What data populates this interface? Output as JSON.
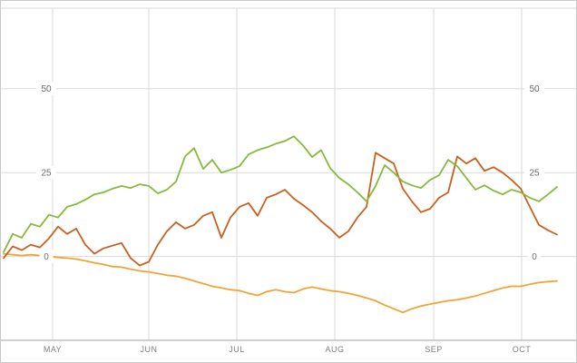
{
  "chart_data": {
    "type": "line",
    "title": "",
    "xlabel": "",
    "ylabel": "",
    "grid": true,
    "legend_position": "none",
    "x_tick_labels": [
      "MAY",
      "JUN",
      "JUL",
      "AUG",
      "SEP",
      "OCT"
    ],
    "y_ticks": [
      0,
      25,
      50
    ],
    "y_tick_labels": [
      "0",
      "25",
      "50"
    ],
    "ylim": [
      -25,
      74
    ],
    "colors": {
      "green_series": "#86b93e",
      "dark_orange_series": "#c8611f",
      "amber_series": "#f1a436",
      "gridline": "#d9d9d9",
      "axis": "#a0a0a0",
      "tick_text": "#6b6b6b"
    },
    "series": [
      {
        "name": "amber",
        "color": "#f1a436",
        "values": [
          0.8,
          0.5,
          0.3,
          0.5,
          0.3,
          0.0,
          -0.3,
          -0.5,
          -0.8,
          -1.3,
          -1.9,
          -2.4,
          -3.0,
          -3.2,
          -3.8,
          -4.3,
          -4.6,
          -5.1,
          -5.6,
          -5.9,
          -6.5,
          -7.3,
          -8.1,
          -8.9,
          -9.4,
          -9.9,
          -10.2,
          -11.0,
          -11.6,
          -10.5,
          -9.9,
          -10.5,
          -10.8,
          -9.7,
          -9.1,
          -9.7,
          -10.2,
          -10.5,
          -11.0,
          -11.6,
          -12.4,
          -13.2,
          -14.5,
          -15.6,
          -16.7,
          -15.6,
          -14.8,
          -14.2,
          -13.7,
          -13.2,
          -12.9,
          -12.4,
          -11.8,
          -11.0,
          -10.2,
          -9.4,
          -8.9,
          -8.9,
          -8.3,
          -7.8,
          -7.5,
          -7.3
        ]
      },
      {
        "name": "dark-orange",
        "color": "#c8611f",
        "values": [
          -0.5,
          3.0,
          1.9,
          3.5,
          2.7,
          5.4,
          8.9,
          6.7,
          8.3,
          3.5,
          0.8,
          2.4,
          3.2,
          4.0,
          -0.5,
          -2.7,
          -1.6,
          3.5,
          7.5,
          10.2,
          8.3,
          9.4,
          12.1,
          13.2,
          5.6,
          11.6,
          14.8,
          15.9,
          12.1,
          17.5,
          18.5,
          19.9,
          17.2,
          15.3,
          13.2,
          10.5,
          8.3,
          5.6,
          7.5,
          11.6,
          14.8,
          30.9,
          29.3,
          27.7,
          20.2,
          16.4,
          13.2,
          14.2,
          17.5,
          19.1,
          29.8,
          27.7,
          29.3,
          25.5,
          26.6,
          25.0,
          22.8,
          20.2,
          14.8,
          9.4,
          7.8,
          6.5
        ]
      },
      {
        "name": "green",
        "color": "#86b93e",
        "values": [
          1.3,
          6.7,
          5.6,
          9.7,
          8.9,
          12.4,
          11.6,
          14.8,
          15.6,
          16.9,
          18.5,
          19.1,
          20.2,
          21.0,
          20.4,
          21.5,
          21.0,
          18.8,
          19.9,
          22.3,
          29.8,
          32.3,
          26.1,
          28.8,
          25.0,
          25.8,
          26.9,
          30.4,
          31.7,
          32.5,
          33.6,
          34.4,
          35.8,
          33.1,
          29.6,
          31.7,
          26.3,
          23.4,
          21.5,
          19.1,
          16.4,
          21.0,
          27.2,
          25.0,
          22.3,
          21.2,
          20.4,
          22.8,
          24.2,
          28.8,
          26.9,
          23.4,
          19.9,
          21.2,
          19.6,
          18.5,
          19.9,
          19.1,
          17.5,
          16.4,
          18.5,
          20.7
        ]
      }
    ]
  }
}
